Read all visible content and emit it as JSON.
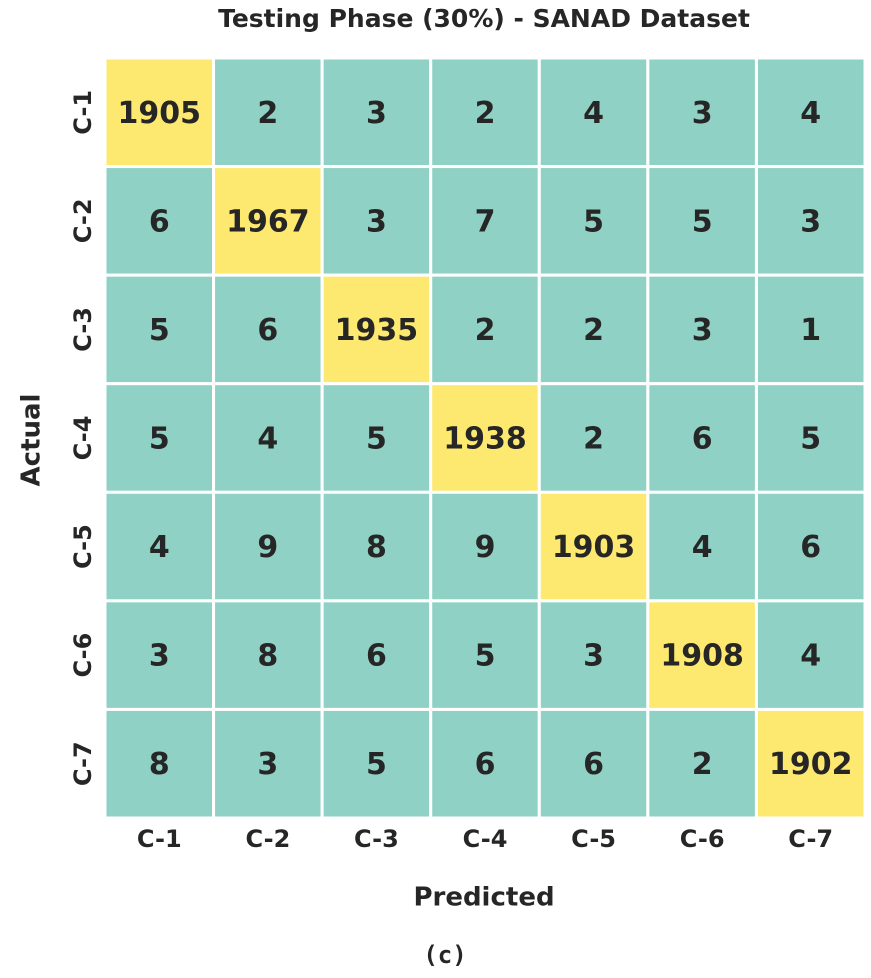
{
  "chart_data": {
    "type": "heatmap",
    "title": "Testing Phase (30%) - SANAD Dataset",
    "x_label": "Predicted",
    "y_label": "Actual",
    "caption": "(c)",
    "x_categories": [
      "C-1",
      "C-2",
      "C-3",
      "C-4",
      "C-5",
      "C-6",
      "C-7"
    ],
    "y_categories": [
      "C-1",
      "C-2",
      "C-3",
      "C-4",
      "C-5",
      "C-6",
      "C-7"
    ],
    "values": [
      [
        1905,
        2,
        3,
        2,
        4,
        3,
        4
      ],
      [
        6,
        1967,
        3,
        7,
        5,
        5,
        3
      ],
      [
        5,
        6,
        1935,
        2,
        2,
        3,
        1
      ],
      [
        5,
        4,
        5,
        1938,
        2,
        6,
        5
      ],
      [
        4,
        9,
        8,
        9,
        1903,
        4,
        6
      ],
      [
        3,
        8,
        6,
        5,
        3,
        1908,
        4
      ],
      [
        8,
        3,
        5,
        6,
        6,
        2,
        1902
      ]
    ],
    "colormap": [
      "#8fd1c4",
      "#fde870"
    ]
  }
}
